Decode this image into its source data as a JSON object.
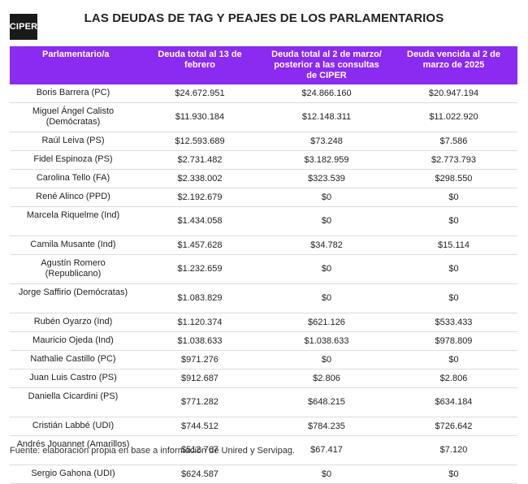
{
  "logo": "CIPER",
  "title": "LAS DEUDAS DE TAG Y PEAJES DE LOS PARLAMENTARIOS",
  "columns": [
    "Parlamentario/a",
    "Deuda total al 13 de febrero",
    "Deuda total al 2 de marzo/ posterior a las consultas de CIPER",
    "Deuda vencida al 2 de marzo de 2025"
  ],
  "rows": [
    [
      "Boris Barrera (PC)",
      "$24.672.951",
      "$24.866.160",
      "$20.947.194"
    ],
    [
      "Miguel Ángel Calisto (Demócratas)",
      "$11.930.184",
      "$12.148.311",
      "$11.022.920"
    ],
    [
      "Raúl Leiva (PS)",
      "$12.593.689",
      "$73.248",
      "$7.586"
    ],
    [
      "Fidel Espinoza (PS)",
      "$2.731.482",
      "$3.182.959",
      "$2.773.793"
    ],
    [
      "Carolina Tello (FA)",
      "$2.338.002",
      "$323.539",
      "$298.550"
    ],
    [
      "René Alinco (PPD)",
      "$2.192.679",
      "$0",
      "$0"
    ],
    [
      "Marcela Riquelme (Ind)",
      "$1.434.058",
      "$0",
      "$0"
    ],
    [
      "Camila Musante (Ind)",
      "$1.457.628",
      "$34.782",
      "$15.114"
    ],
    [
      "Agustín Romero (Republicano)",
      "$1.232.659",
      "$0",
      "$0"
    ],
    [
      "Jorge Saffirio (Demócratas)",
      "$1.083.829",
      "$0",
      "$0"
    ],
    [
      "Rubén Oyarzo (Ind)",
      "$1.120.374",
      "$621.126",
      "$533.433"
    ],
    [
      "Mauricio Ojeda (Ind)",
      "$1.038.633",
      "$1.038.633",
      "$978.809"
    ],
    [
      "Nathalie Castillo (PC)",
      "$971.276",
      "$0",
      "$0"
    ],
    [
      "Juan Luis Castro (PS)",
      "$912.687",
      "$2.806",
      "$2.806"
    ],
    [
      "Daniella Cicardini (PS)",
      "$771.282",
      "$648.215",
      "$634.184"
    ],
    [
      "Cristián Labbé (UDI)",
      "$744.512",
      "$784.235",
      "$726.642"
    ],
    [
      "Andrés Jouannet (Amarillos)",
      "$512.767",
      "$67.417",
      "$7.120"
    ],
    [
      "Sergio Gahona (UDI)",
      "$624.587",
      "$0",
      "$0"
    ]
  ],
  "footer": "Fuente: elaboración propia en base a información de Unired y Servipag."
}
